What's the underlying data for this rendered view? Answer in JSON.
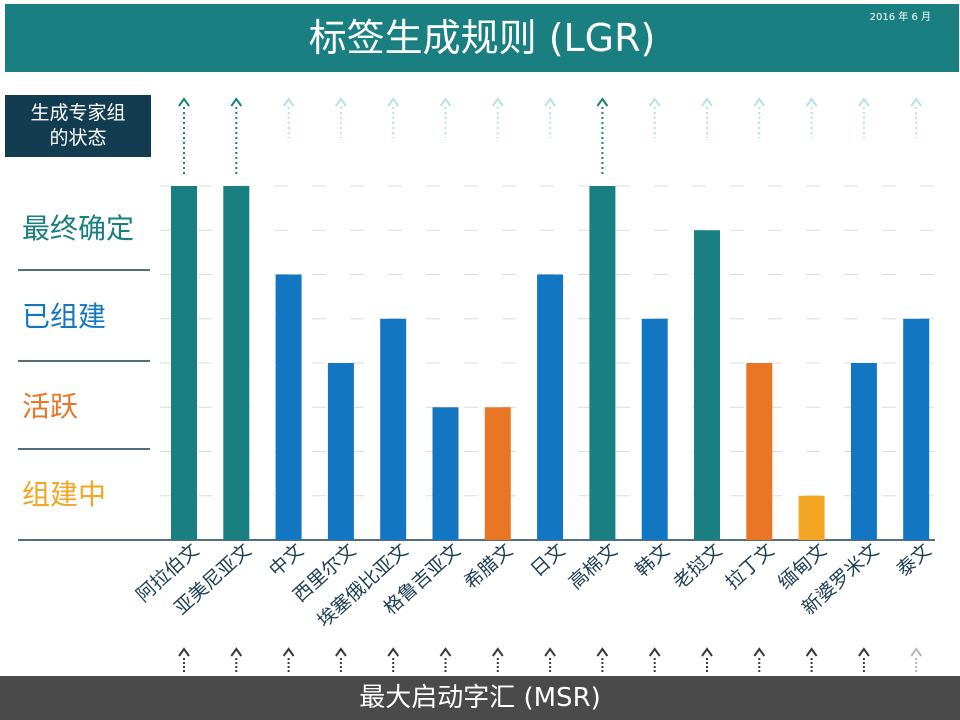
{
  "header": {
    "title": "标签生成规则 (LGR)",
    "date": "2016 年 6 月",
    "title_bg_color": "#1a7f80"
  },
  "working_group_box": {
    "line1": "生成专家组",
    "line2": "的状态"
  },
  "footer": {
    "label": "最大启动字汇 (MSR)"
  },
  "colors": {
    "finalized": "#1a7f80",
    "formed": "#1276c2",
    "active": "#e87624",
    "forming": "#f2a623",
    "msr_bar": "#4a4a4a"
  },
  "chart_data": {
    "type": "bar",
    "status_levels": [
      {
        "value": 4,
        "label": "最终确定",
        "color": "#1a7f80"
      },
      {
        "value": 3,
        "label": "已组建",
        "color": "#1276c2"
      },
      {
        "value": 2,
        "label": "活跃",
        "color": "#e87624"
      },
      {
        "value": 1,
        "label": "组建中",
        "color": "#f2a623"
      }
    ],
    "ylim": [
      0,
      4
    ],
    "grid": true,
    "categories": [
      "阿拉伯文",
      "亚美尼亚文",
      "中文",
      "西里尔文",
      "埃塞俄比亚文",
      "格鲁吉亚文",
      "希腊文",
      "日文",
      "高棉文",
      "韩文",
      "老挝文",
      "拉丁文",
      "缅甸文",
      "新婆罗米文",
      "泰文"
    ],
    "values": [
      4,
      4,
      3,
      2,
      2.5,
      1.5,
      1.5,
      3,
      4,
      2.5,
      3.5,
      2,
      0.5,
      2,
      2.5
    ],
    "bar_colors": [
      "#1a7f80",
      "#1a7f80",
      "#1276c2",
      "#1276c2",
      "#1276c2",
      "#1276c2",
      "#e87624",
      "#1276c2",
      "#1a7f80",
      "#1276c2",
      "#1a7f80",
      "#e87624",
      "#f2a623",
      "#1276c2",
      "#1276c2"
    ],
    "top_arrow_state": [
      "dark",
      "dark",
      "light",
      "light",
      "light",
      "light",
      "light",
      "light",
      "dark",
      "light",
      "light",
      "light",
      "light",
      "light",
      "light"
    ],
    "bottom_arrow_state": [
      "dark",
      "dark",
      "dark",
      "dark",
      "dark",
      "dark",
      "dark",
      "dark",
      "dark",
      "dark",
      "dark",
      "dark",
      "dark",
      "dark",
      "light"
    ]
  }
}
